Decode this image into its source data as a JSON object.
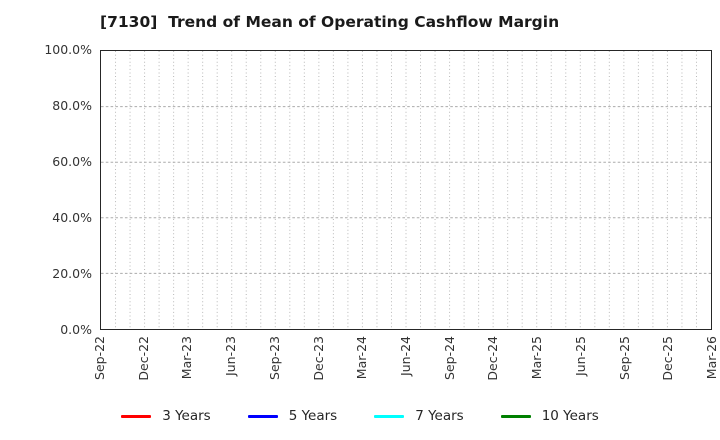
{
  "title": "[7130]  Trend of Mean of Operating Cashflow Margin",
  "chart_data": {
    "type": "line",
    "title": "[7130]  Trend of Mean of Operating Cashflow Margin",
    "xlabel": "",
    "ylabel": "",
    "categories": [
      "Sep-22",
      "Dec-22",
      "Mar-23",
      "Jun-23",
      "Sep-23",
      "Dec-23",
      "Mar-24",
      "Jun-24",
      "Sep-24",
      "Dec-24",
      "Mar-25",
      "Jun-25",
      "Sep-25",
      "Dec-25",
      "Mar-26"
    ],
    "ylim": [
      0,
      100
    ],
    "ytick_values": [
      0,
      20,
      40,
      60,
      80,
      100
    ],
    "ytick_labels": [
      "0.0%",
      "20.0%",
      "40.0%",
      "60.0%",
      "80.0%",
      "100.0%"
    ],
    "grid": "on",
    "grid_hlines_pct": [
      20,
      40,
      60,
      80
    ],
    "x_minor_divisions_per_interval": 3,
    "legend_position": "bottom",
    "plot_empty": true,
    "series": [
      {
        "name": "3 Years",
        "color": "#ff0000",
        "values": []
      },
      {
        "name": "5 Years",
        "color": "#0000ff",
        "values": []
      },
      {
        "name": "7 Years",
        "color": "#00ffff",
        "values": []
      },
      {
        "name": "10 Years",
        "color": "#008000",
        "values": []
      }
    ]
  }
}
